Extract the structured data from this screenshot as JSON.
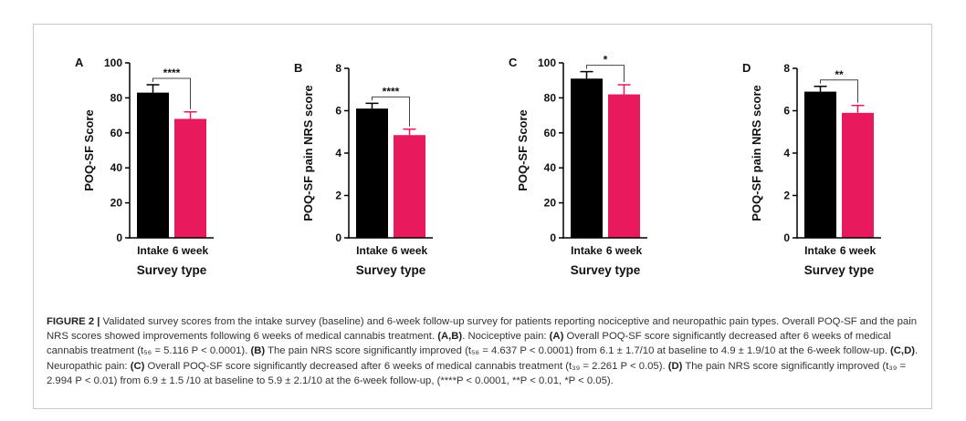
{
  "figure": {
    "label": "FIGURE 2 |",
    "caption_parts": [
      {
        "t": " Validated survey scores from the intake survey (baseline) and 6-week follow-up survey for patients reporting nociceptive and neuropathic pain types. Overall POQ-SF and the pain NRS scores showed improvements following 6 weeks of medical cannabis treatment. ",
        "b": false
      },
      {
        "t": "(A,B)",
        "b": true
      },
      {
        "t": ". Nociceptive pain: ",
        "b": false
      },
      {
        "t": "(A)",
        "b": true
      },
      {
        "t": " Overall POQ-SF score significantly decreased after 6 weeks of medical cannabis treatment (t₅₆ = 5.116 P < 0.0001). ",
        "b": false
      },
      {
        "t": "(B)",
        "b": true
      },
      {
        "t": " The pain NRS score significantly improved (t₅₆ = 4.637 P < 0.0001) from 6.1 ± 1.7/10 at baseline to 4.9 ± 1.9/10 at the 6-week follow-up. ",
        "b": false
      },
      {
        "t": "(C,D)",
        "b": true
      },
      {
        "t": ". Neuropathic pain: ",
        "b": false
      },
      {
        "t": "(C)",
        "b": true
      },
      {
        "t": " Overall POQ-SF score significantly decreased after 6 weeks of medical cannabis treatment (t₃₉ = 2.261 P < 0.05). ",
        "b": false
      },
      {
        "t": "(D)",
        "b": true
      },
      {
        "t": " The pain NRS score significantly improved (t₃₉ = 2.994 P < 0.01) from 6.9 ± 1.5 /10 at baseline to 5.9 ± 2.1/10 at the 6-week follow-up, (****P < 0.0001, **P < 0.01, *P < 0.05).",
        "b": false
      }
    ]
  },
  "colors": {
    "intake": "#000000",
    "six_week": "#e8195c"
  },
  "chart_data": [
    {
      "type": "bar",
      "panel": "A",
      "categories": [
        "Intake",
        "6 week"
      ],
      "values": [
        83,
        68
      ],
      "errors": [
        4.5,
        4
      ],
      "ylabel": "POQ-SF Score",
      "xlabel": "Survey type",
      "ylim": [
        0,
        100
      ],
      "yticks": [
        0,
        20,
        40,
        60,
        80,
        100
      ],
      "significance": "****"
    },
    {
      "type": "bar",
      "panel": "B",
      "categories": [
        "Intake",
        "6 week"
      ],
      "values": [
        6.1,
        4.85
      ],
      "errors": [
        0.25,
        0.28
      ],
      "ylabel": "POQ-SF pain NRS score",
      "xlabel": "Survey type",
      "ylim": [
        0,
        8
      ],
      "yticks": [
        0,
        2,
        4,
        6,
        8
      ],
      "significance": "****"
    },
    {
      "type": "bar",
      "panel": "C",
      "categories": [
        "Intake",
        "6 week"
      ],
      "values": [
        91,
        82
      ],
      "errors": [
        4,
        5.5
      ],
      "ylabel": "POQ-SF Score",
      "xlabel": "Survey type",
      "ylim": [
        0,
        100
      ],
      "yticks": [
        0,
        20,
        40,
        60,
        80,
        100
      ],
      "significance": "*"
    },
    {
      "type": "bar",
      "panel": "D",
      "categories": [
        "Intake",
        "6 week"
      ],
      "values": [
        6.9,
        5.9
      ],
      "errors": [
        0.25,
        0.35
      ],
      "ylabel": "POQ-SF pain NRS score",
      "xlabel": "Survey type",
      "ylim": [
        0,
        8
      ],
      "yticks": [
        0,
        2,
        4,
        6,
        8
      ],
      "significance": "**"
    }
  ]
}
